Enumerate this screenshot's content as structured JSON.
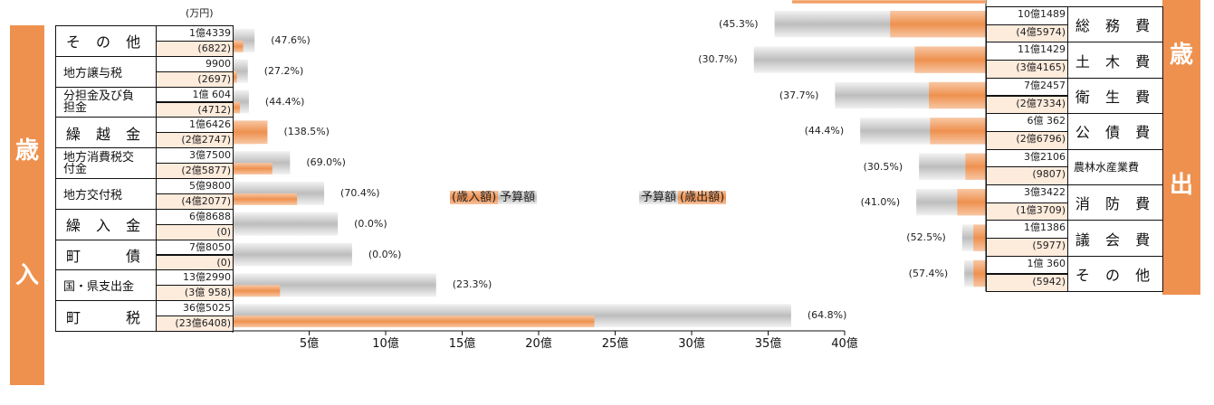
{
  "unit_label": "(万円)",
  "revenue_tag": [
    "歳",
    "入"
  ],
  "expense_tag": [
    "歳",
    "出"
  ],
  "legend": {
    "revenue_paren": "(歳入額)",
    "revenue_budget": "予算額",
    "expense_budget": "予算額",
    "expense_paren": "(歳出額)"
  },
  "colors": {
    "orange": "#EE914F",
    "gray": "#BDBDBD",
    "pale_orange": "#FDEBDC"
  },
  "chart_data": [
    {
      "type": "bar",
      "name_hint": "revenue",
      "xlim": [
        0,
        40
      ],
      "x_ticks": [
        "5億",
        "10億",
        "15億",
        "20億",
        "25億",
        "30億",
        "35億",
        "40億"
      ],
      "rows": [
        {
          "label": "そ の 他",
          "budget_label": "1億4339",
          "actual_label": "(6822)",
          "budget": 1.4339,
          "actual": 0.6822,
          "pct": "(47.6%)"
        },
        {
          "label": "地方譲与税",
          "budget_label": "9900",
          "actual_label": "(2697)",
          "budget": 0.99,
          "actual": 0.2697,
          "pct": "(27.2%)"
        },
        {
          "label": "分担金及び負担金",
          "budget_label": "1億 604",
          "actual_label": "(4712)",
          "budget": 1.0604,
          "actual": 0.4712,
          "pct": "(44.4%)"
        },
        {
          "label": "繰 越 金",
          "budget_label": "1億6426",
          "actual_label": "(2億2747)",
          "budget": 1.6426,
          "actual": 2.2747,
          "pct": "(138.5%)"
        },
        {
          "label": "地方消費税交付金",
          "budget_label": "3億7500",
          "actual_label": "(2億5877)",
          "budget": 3.75,
          "actual": 2.5877,
          "pct": "(69.0%)"
        },
        {
          "label": "地方交付税",
          "budget_label": "5億9800",
          "actual_label": "(4億2077)",
          "budget": 5.98,
          "actual": 4.2077,
          "pct": "(70.4%)"
        },
        {
          "label": "繰 入 金",
          "budget_label": "6億8688",
          "actual_label": "(0)",
          "budget": 6.8688,
          "actual": 0,
          "pct": "(0.0%)"
        },
        {
          "label": "町　　債",
          "budget_label": "7億8050",
          "actual_label": "(0)",
          "budget": 7.805,
          "actual": 0,
          "pct": "(0.0%)"
        },
        {
          "label": "国・県支出金",
          "budget_label": "13億2990",
          "actual_label": "(3億 958)",
          "budget": 13.299,
          "actual": 3.0958,
          "pct": "(23.3%)"
        },
        {
          "label": "町　　税",
          "budget_label": "36億5025",
          "actual_label": "(23億6408)",
          "budget": 36.5025,
          "actual": 23.6408,
          "pct": "(64.8%)"
        }
      ]
    },
    {
      "type": "bar",
      "name_hint": "expenditure",
      "rows": [
        {
          "label": "総 務 費",
          "budget_label": "10億1489",
          "actual_label": "(4億5974)",
          "budget": 10.1489,
          "actual": 4.5974,
          "pct": "(45.3%)"
        },
        {
          "label": "土 木 費",
          "budget_label": "11億1429",
          "actual_label": "(3億4165)",
          "budget": 11.1429,
          "actual": 3.4165,
          "pct": "(30.7%)"
        },
        {
          "label": "衛 生 費",
          "budget_label": "7億2457",
          "actual_label": "(2億7334)",
          "budget": 7.2457,
          "actual": 2.7334,
          "pct": "(37.7%)"
        },
        {
          "label": "公 債 費",
          "budget_label": "6億 362",
          "actual_label": "(2億6796)",
          "budget": 6.0362,
          "actual": 2.6796,
          "pct": "(44.4%)"
        },
        {
          "label": "農林水産業費",
          "budget_label": "3億2106",
          "actual_label": "(9807)",
          "budget": 3.2106,
          "actual": 0.9807,
          "pct": "(30.5%)"
        },
        {
          "label": "消 防 費",
          "budget_label": "3億3422",
          "actual_label": "(1億3709)",
          "budget": 3.3422,
          "actual": 1.3709,
          "pct": "(41.0%)"
        },
        {
          "label": "議 会 費",
          "budget_label": "1億1386",
          "actual_label": "(5977)",
          "budget": 1.1386,
          "actual": 0.5977,
          "pct": "(52.5%)"
        },
        {
          "label": "そ の 他",
          "budget_label": "1億 360",
          "actual_label": "(5942)",
          "budget": 1.036,
          "actual": 0.5942,
          "pct": "(57.4%)"
        }
      ]
    }
  ]
}
